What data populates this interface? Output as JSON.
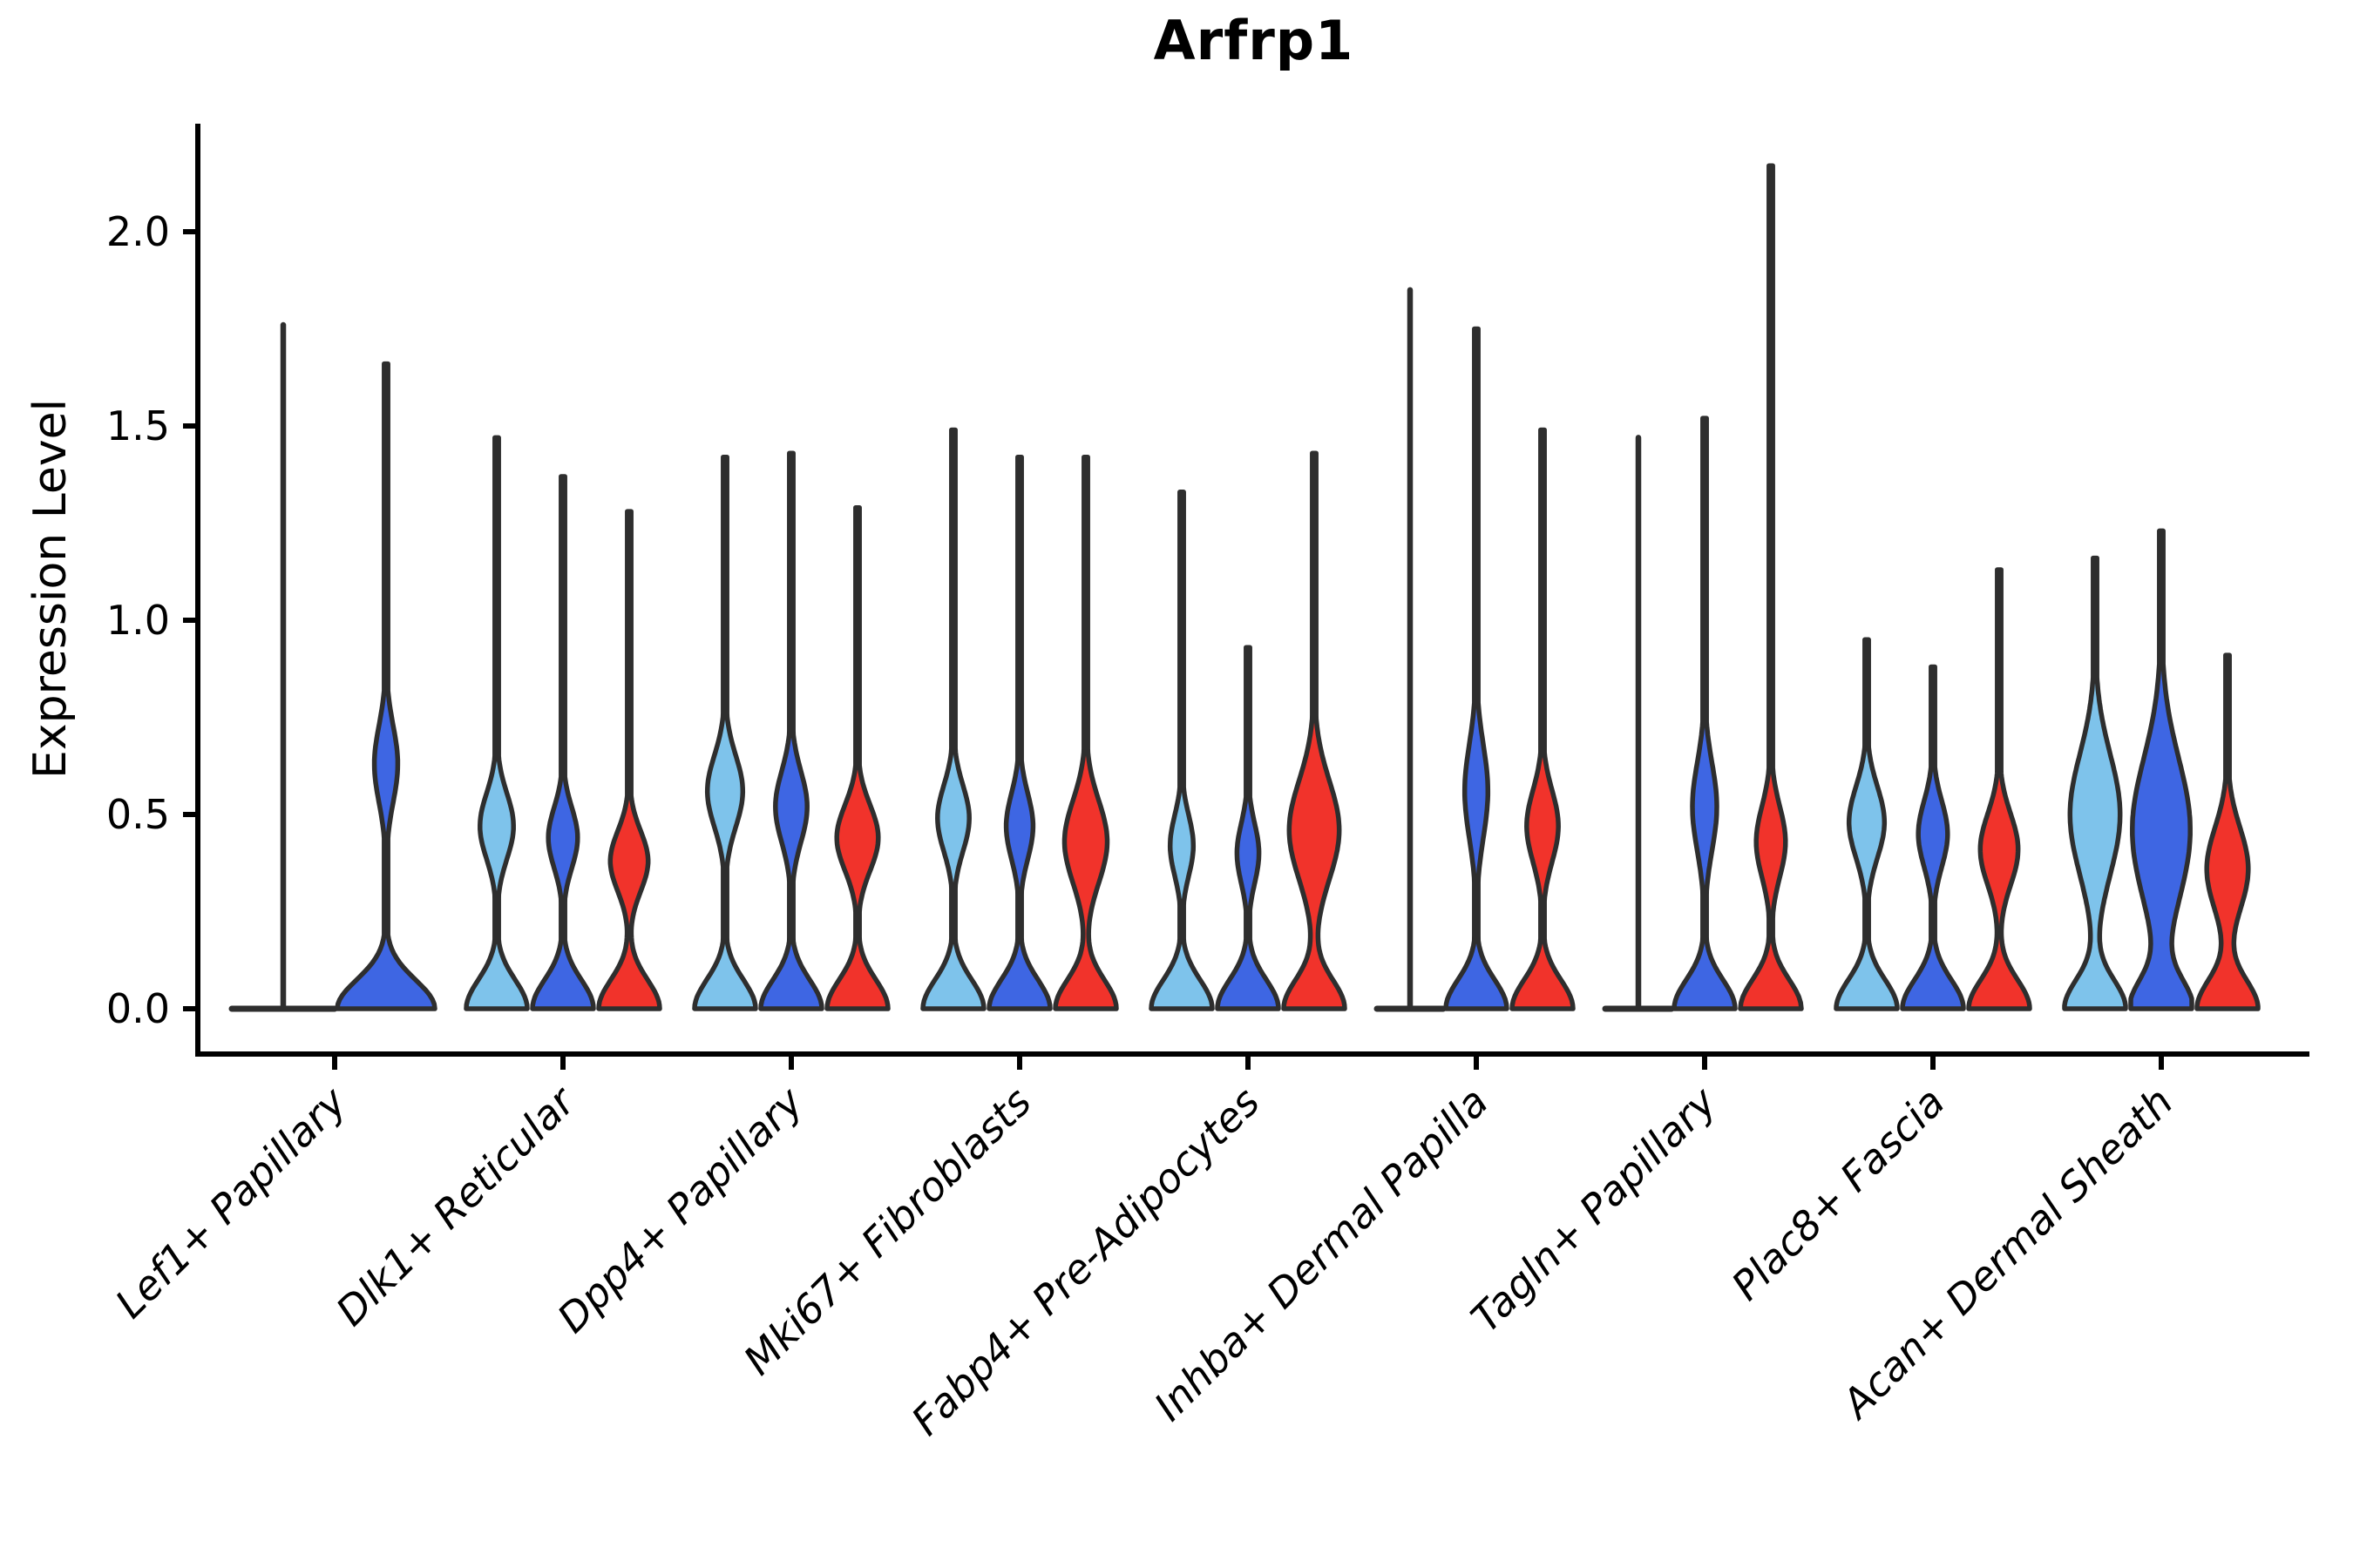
{
  "chart_data": {
    "type": "violin",
    "title": "Arfrp1",
    "ylabel": "Expression Level",
    "xlabel": "",
    "ylim": [
      -0.12,
      2.28
    ],
    "yticks": [
      0.0,
      0.5,
      1.0,
      1.5,
      2.0
    ],
    "ytick_labels": [
      "0.0",
      "0.5",
      "1.0",
      "1.5",
      "2.0"
    ],
    "grid": false,
    "legend": "none",
    "xtick_rotation": 45,
    "categories": [
      "Lef1+ Papillary",
      "Dlk1+ Reticular",
      "Dpp4+ Papillary",
      "Mki67+ Fibroblasts",
      "Fabp4+ Pre-Adipocytes",
      "Inhba+ Dermal Papilla",
      "Tagln+ Papillary",
      "Plac8+ Fascia",
      "Acan+ Dermal Sheath"
    ],
    "series_colors": {
      "light_blue": "#7EC3EB",
      "blue": "#3E66E3",
      "red": "#F1332B"
    },
    "edge_color": "#2E2E2E",
    "axis_color": "#000000",
    "groups": [
      {
        "category": "Lef1+ Papillary",
        "violins": [
          {
            "color": "light_blue",
            "max": 1.76,
            "shape": "flat"
          },
          {
            "color": "blue",
            "max": 1.66,
            "shape": "kde",
            "bulge_center": 0.63,
            "bulge_spread": 0.14,
            "bulge_width": 0.24
          }
        ]
      },
      {
        "category": "Dlk1+ Reticular",
        "violins": [
          {
            "color": "light_blue",
            "max": 1.47,
            "shape": "kde",
            "bulge_center": 0.47,
            "bulge_spread": 0.12,
            "bulge_width": 0.55
          },
          {
            "color": "blue",
            "max": 1.37,
            "shape": "kde",
            "bulge_center": 0.44,
            "bulge_spread": 0.11,
            "bulge_width": 0.48
          },
          {
            "color": "red",
            "max": 1.28,
            "shape": "kde",
            "bulge_center": 0.38,
            "bulge_spread": 0.11,
            "bulge_width": 0.62
          }
        ]
      },
      {
        "category": "Dpp4+ Papillary",
        "violins": [
          {
            "color": "light_blue",
            "max": 1.42,
            "shape": "kde",
            "bulge_center": 0.56,
            "bulge_spread": 0.13,
            "bulge_width": 0.58
          },
          {
            "color": "blue",
            "max": 1.43,
            "shape": "kde",
            "bulge_center": 0.52,
            "bulge_spread": 0.13,
            "bulge_width": 0.52
          },
          {
            "color": "red",
            "max": 1.29,
            "shape": "kde",
            "bulge_center": 0.44,
            "bulge_spread": 0.12,
            "bulge_width": 0.68
          }
        ]
      },
      {
        "category": "Mki67+ Fibroblasts",
        "violins": [
          {
            "color": "light_blue",
            "max": 1.49,
            "shape": "kde",
            "bulge_center": 0.49,
            "bulge_spread": 0.12,
            "bulge_width": 0.52
          },
          {
            "color": "blue",
            "max": 1.42,
            "shape": "kde",
            "bulge_center": 0.47,
            "bulge_spread": 0.12,
            "bulge_width": 0.44
          },
          {
            "color": "red",
            "max": 1.42,
            "shape": "kde",
            "bulge_center": 0.43,
            "bulge_spread": 0.15,
            "bulge_width": 0.7
          }
        ]
      },
      {
        "category": "Fabp4+ Pre-Adipocytes",
        "violins": [
          {
            "color": "light_blue",
            "max": 1.33,
            "shape": "kde",
            "bulge_center": 0.42,
            "bulge_spread": 0.11,
            "bulge_width": 0.38
          },
          {
            "color": "blue",
            "max": 0.93,
            "shape": "kde",
            "bulge_center": 0.4,
            "bulge_spread": 0.11,
            "bulge_width": 0.36
          },
          {
            "color": "red",
            "max": 1.43,
            "shape": "kde",
            "bulge_center": 0.46,
            "bulge_spread": 0.18,
            "bulge_width": 0.82
          }
        ]
      },
      {
        "category": "Inhba+ Dermal Papilla",
        "violins": [
          {
            "color": "light_blue",
            "max": 1.85,
            "shape": "flat"
          },
          {
            "color": "blue",
            "max": 1.75,
            "shape": "kde",
            "bulge_center": 0.56,
            "bulge_spread": 0.17,
            "bulge_width": 0.38
          },
          {
            "color": "red",
            "max": 1.49,
            "shape": "kde",
            "bulge_center": 0.47,
            "bulge_spread": 0.13,
            "bulge_width": 0.52
          }
        ]
      },
      {
        "category": "Tagln+ Papillary",
        "violins": [
          {
            "color": "light_blue",
            "max": 1.47,
            "shape": "flat"
          },
          {
            "color": "blue",
            "max": 1.52,
            "shape": "kde",
            "bulge_center": 0.52,
            "bulge_spread": 0.16,
            "bulge_width": 0.4
          },
          {
            "color": "red",
            "max": 2.17,
            "shape": "kde",
            "bulge_center": 0.43,
            "bulge_spread": 0.13,
            "bulge_width": 0.48
          }
        ]
      },
      {
        "category": "Plac8+ Fascia",
        "violins": [
          {
            "color": "light_blue",
            "max": 0.95,
            "shape": "kde",
            "bulge_center": 0.48,
            "bulge_spread": 0.13,
            "bulge_width": 0.58
          },
          {
            "color": "blue",
            "max": 0.88,
            "shape": "kde",
            "bulge_center": 0.45,
            "bulge_spread": 0.12,
            "bulge_width": 0.48
          },
          {
            "color": "red",
            "max": 1.13,
            "shape": "kde",
            "bulge_center": 0.41,
            "bulge_spread": 0.13,
            "bulge_width": 0.62
          }
        ]
      },
      {
        "category": "Acan+ Dermal Sheath",
        "violins": [
          {
            "color": "light_blue",
            "max": 1.16,
            "shape": "kde",
            "bulge_center": 0.5,
            "bulge_spread": 0.22,
            "bulge_width": 0.82
          },
          {
            "color": "blue",
            "max": 1.23,
            "shape": "kde",
            "bulge_center": 0.46,
            "bulge_spread": 0.26,
            "bulge_width": 0.95
          },
          {
            "color": "red",
            "max": 0.91,
            "shape": "kde",
            "bulge_center": 0.36,
            "bulge_spread": 0.15,
            "bulge_width": 0.68
          }
        ]
      }
    ]
  }
}
